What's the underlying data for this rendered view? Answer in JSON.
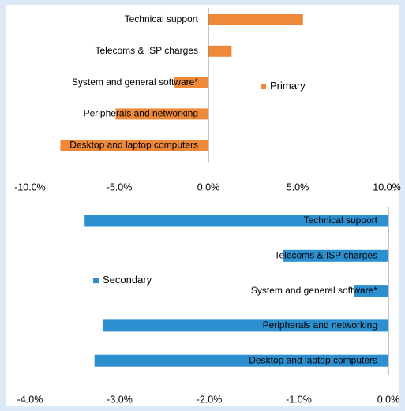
{
  "chart_data": [
    {
      "type": "bar",
      "orientation": "horizontal",
      "categories": [
        "Technical support",
        "Telecoms & ISP charges",
        "System and general software*",
        "Peripherals and networking",
        "Desktop and laptop computers"
      ],
      "series": [
        {
          "name": "Primary",
          "color": "#f0883a",
          "values": [
            5.3,
            1.3,
            -1.9,
            -5.2,
            -8.3
          ]
        }
      ],
      "xlim": [
        -10,
        10
      ],
      "xticks": [
        {
          "value": -10,
          "label": "-10.0%"
        },
        {
          "value": -5,
          "label": "-5.0%"
        },
        {
          "value": 0,
          "label": "0.0%"
        },
        {
          "value": 5,
          "label": "5.0%"
        },
        {
          "value": 10,
          "label": "10.0%"
        }
      ],
      "legend": "right"
    },
    {
      "type": "bar",
      "orientation": "horizontal",
      "categories": [
        "Technical support",
        "Telecoms & ISP charges",
        "System and general software*",
        "Peripherals and networking",
        "Desktop and laptop computers"
      ],
      "series": [
        {
          "name": "Secondary",
          "color": "#2b8fd0",
          "values": [
            -3.39,
            -1.18,
            -0.38,
            -3.19,
            -3.28
          ]
        }
      ],
      "xlim": [
        -4,
        0
      ],
      "xticks": [
        {
          "value": -4,
          "label": "-4.0%"
        },
        {
          "value": -3,
          "label": "-3.0%"
        },
        {
          "value": -2,
          "label": "-2.0%"
        },
        {
          "value": -1,
          "label": "-1.0%"
        },
        {
          "value": 0,
          "label": "0.0%"
        }
      ],
      "legend": "left"
    }
  ]
}
